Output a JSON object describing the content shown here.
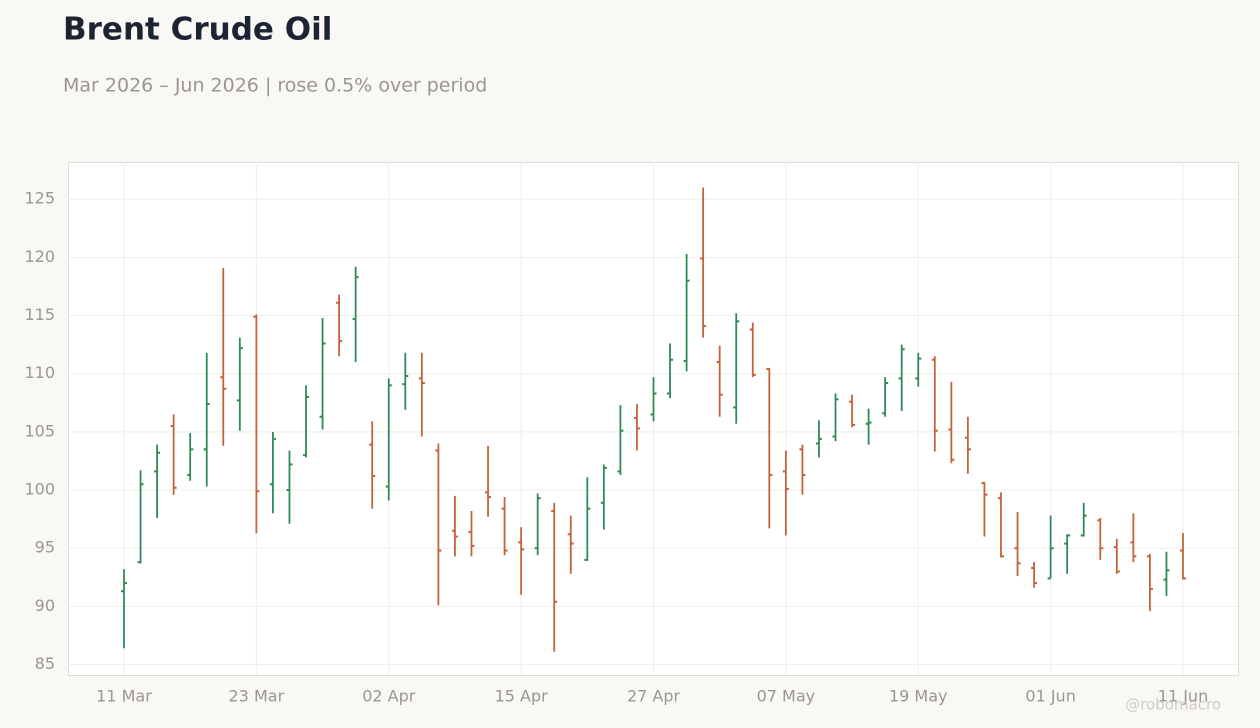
{
  "chart_data": {
    "type": "ohlc",
    "title": "Brent Crude Oil",
    "subtitle": "Mar 2026 – Jun 2026 | rose 0.5% over period",
    "watermark": "@robomacro",
    "up_color": "#2e8a57",
    "down_color": "#c5623a",
    "grid": true,
    "categories": [
      "11 Mar",
      null,
      null,
      null,
      null,
      null,
      null,
      null,
      "23 Mar",
      null,
      null,
      null,
      null,
      null,
      null,
      null,
      "02 Apr",
      null,
      null,
      null,
      null,
      null,
      null,
      null,
      "15 Apr",
      null,
      null,
      null,
      null,
      null,
      null,
      null,
      "27 Apr",
      null,
      null,
      null,
      null,
      null,
      null,
      null,
      "07 May",
      null,
      null,
      null,
      null,
      null,
      null,
      null,
      "19 May",
      null,
      null,
      null,
      null,
      null,
      null,
      null,
      "01 Jun",
      null,
      null,
      null,
      null,
      null,
      null,
      null,
      "11 Jun"
    ],
    "open": [
      91.3,
      93.8,
      101.6,
      105.5,
      101.3,
      103.5,
      109.7,
      107.7,
      114.9,
      100.5,
      100.0,
      103.0,
      106.3,
      116.1,
      114.7,
      103.9,
      100.3,
      109.1,
      109.6,
      103.4,
      96.5,
      96.4,
      99.8,
      98.4,
      95.5,
      95.0,
      98.2,
      96.2,
      94.0,
      98.9,
      101.6,
      106.2,
      106.5,
      108.3,
      111.1,
      119.9,
      111.0,
      107.1,
      113.8,
      110.4,
      101.6,
      103.5,
      104.0,
      104.6,
      107.6,
      105.7,
      106.6,
      109.6,
      109.6,
      111.2,
      105.2,
      104.5,
      100.6,
      99.3,
      95.0,
      93.3,
      92.4,
      95.4,
      96.1,
      97.4,
      95.1,
      95.5,
      94.3,
      92.3,
      94.8
    ],
    "high": [
      93.2,
      101.7,
      103.9,
      106.5,
      104.9,
      111.8,
      119.1,
      113.1,
      115.1,
      105.0,
      103.4,
      109.0,
      114.8,
      116.8,
      119.2,
      105.9,
      109.6,
      111.8,
      111.8,
      104.0,
      99.5,
      98.2,
      103.8,
      99.4,
      96.8,
      99.7,
      98.9,
      97.8,
      101.1,
      102.2,
      107.3,
      107.4,
      109.7,
      112.6,
      120.3,
      126.0,
      112.4,
      115.2,
      114.4,
      110.5,
      103.4,
      103.9,
      106.0,
      108.3,
      108.2,
      107.0,
      109.7,
      112.5,
      111.8,
      111.5,
      109.3,
      106.3,
      100.7,
      99.8,
      98.1,
      93.8,
      97.8,
      96.2,
      98.9,
      97.6,
      95.8,
      98.0,
      94.5,
      94.7,
      96.3
    ],
    "low": [
      86.4,
      93.7,
      97.6,
      99.6,
      100.8,
      100.3,
      103.8,
      105.1,
      96.3,
      98.0,
      97.1,
      102.8,
      105.2,
      111.5,
      111.0,
      98.4,
      99.1,
      106.9,
      104.6,
      90.1,
      94.3,
      94.3,
      97.7,
      94.4,
      91.0,
      94.4,
      86.1,
      92.8,
      93.9,
      96.6,
      101.3,
      103.4,
      105.9,
      107.9,
      110.2,
      113.1,
      106.3,
      105.7,
      109.7,
      96.7,
      96.1,
      99.6,
      102.8,
      104.2,
      105.4,
      103.9,
      106.3,
      106.8,
      108.9,
      103.3,
      102.3,
      101.4,
      96.0,
      94.2,
      92.6,
      91.6,
      92.4,
      92.8,
      96.0,
      94.0,
      92.8,
      93.8,
      89.6,
      90.9,
      92.3
    ],
    "close": [
      92.0,
      100.5,
      103.2,
      100.2,
      103.5,
      107.4,
      108.7,
      112.2,
      99.9,
      104.4,
      102.2,
      108.0,
      112.6,
      112.8,
      118.3,
      101.2,
      109.0,
      109.8,
      109.2,
      94.8,
      96.0,
      95.2,
      99.4,
      94.8,
      94.9,
      99.3,
      90.4,
      95.4,
      98.4,
      101.9,
      105.1,
      105.3,
      108.3,
      111.2,
      118.0,
      114.1,
      108.2,
      114.5,
      109.9,
      101.3,
      100.1,
      101.3,
      104.4,
      107.8,
      105.6,
      105.8,
      109.2,
      112.1,
      111.3,
      105.1,
      102.6,
      103.5,
      99.6,
      94.3,
      93.7,
      92.0,
      95.0,
      96.1,
      97.8,
      95.0,
      93.0,
      94.3,
      91.5,
      93.1,
      92.4
    ],
    "ylim": [
      84.1,
      128.2
    ],
    "yticks": [
      85,
      90,
      95,
      100,
      105,
      110,
      115,
      120,
      125
    ]
  }
}
